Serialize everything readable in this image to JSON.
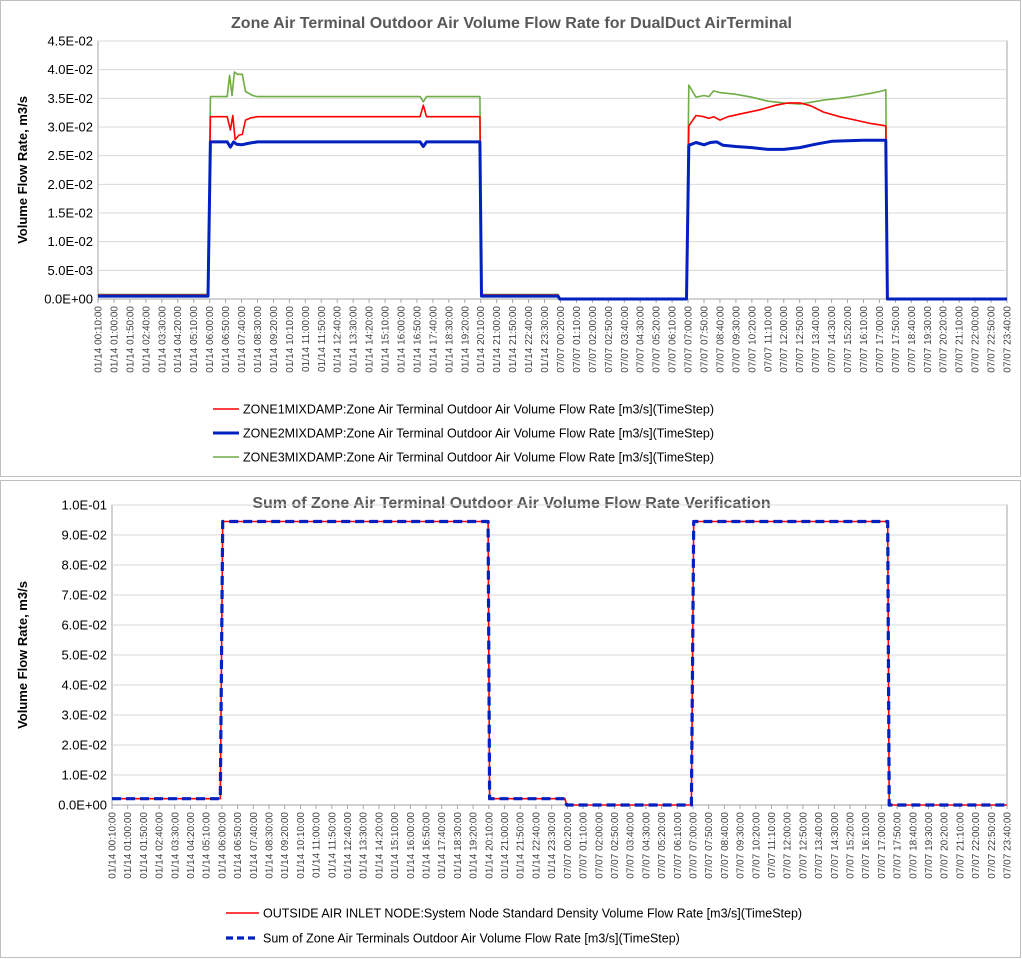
{
  "colors": {
    "zone1": "#ff0000",
    "zone2": "#0020c0",
    "zone3": "#70ad47",
    "outside": "#ff0000",
    "sum": "#0020c0"
  },
  "chart_data": [
    {
      "type": "line",
      "title": "Zone Air Terminal Outdoor Air Volume Flow Rate for DualDuct AirTerminal",
      "xlabel": "",
      "ylabel": "Volume Flow Rate, m3/s",
      "ylim": [
        0,
        0.045
      ],
      "ytick_labels": [
        "0.0E+00",
        "5.0E-03",
        "1.0E-02",
        "1.5E-02",
        "2.0E-02",
        "2.5E-02",
        "3.0E-02",
        "3.5E-02",
        "4.0E-02",
        "4.5E-02"
      ],
      "x_tick_labels": [
        "01/14 00:10:00",
        "01/14 01:00:00",
        "01/14 01:50:00",
        "01/14 02:40:00",
        "01/14 03:30:00",
        "01/14 04:20:00",
        "01/14 05:10:00",
        "01/14 06:00:00",
        "01/14 06:50:00",
        "01/14 07:40:00",
        "01/14 08:30:00",
        "01/14 09:20:00",
        "01/14 10:10:00",
        "01/14 11:00:00",
        "01/14 11:50:00",
        "01/14 12:40:00",
        "01/14 13:30:00",
        "01/14 14:20:00",
        "01/14 15:10:00",
        "01/14 16:00:00",
        "01/14 16:50:00",
        "01/14 17:40:00",
        "01/14 18:30:00",
        "01/14 19:20:00",
        "01/14 20:10:00",
        "01/14 21:00:00",
        "01/14 21:50:00",
        "01/14 22:40:00",
        "01/14 23:30:00",
        "07/07 00:20:00",
        "07/07 01:10:00",
        "07/07 02:00:00",
        "07/07 02:50:00",
        "07/07 03:40:00",
        "07/07 04:30:00",
        "07/07 05:20:00",
        "07/07 06:10:00",
        "07/07 07:00:00",
        "07/07 07:50:00",
        "07/07 08:40:00",
        "07/07 09:30:00",
        "07/07 10:20:00",
        "07/07 11:10:00",
        "07/07 12:00:00",
        "07/07 12:50:00",
        "07/07 13:40:00",
        "07/07 14:30:00",
        "07/07 15:20:00",
        "07/07 16:10:00",
        "07/07 17:00:00",
        "07/07 17:50:00",
        "07/07 18:40:00",
        "07/07 19:30:00",
        "07/07 20:20:00",
        "07/07 21:10:00",
        "07/07 22:00:00",
        "07/07 22:50:00",
        "07/07 23:40:00"
      ],
      "x_index_range": [
        0,
        57
      ],
      "series": [
        {
          "name": "ZONE1MIXDAMP:Zone Air Terminal Outdoor Air Volume Flow Rate [m3/s](TimeStep)",
          "color_key": "zone1",
          "points": [
            [
              0,
              0.0007
            ],
            [
              6.9,
              0.0007
            ],
            [
              7.05,
              0.0318
            ],
            [
              8.1,
              0.0318
            ],
            [
              8.3,
              0.0295
            ],
            [
              8.45,
              0.032
            ],
            [
              8.6,
              0.0278
            ],
            [
              8.85,
              0.0286
            ],
            [
              9.05,
              0.0287
            ],
            [
              9.25,
              0.0312
            ],
            [
              9.6,
              0.0316
            ],
            [
              10,
              0.0318
            ],
            [
              20.2,
              0.0318
            ],
            [
              20.4,
              0.0338
            ],
            [
              20.6,
              0.0318
            ],
            [
              23.95,
              0.0318
            ],
            [
              24.05,
              0.0007
            ],
            [
              28.85,
              0.0007
            ],
            [
              28.95,
              0.0
            ],
            [
              36.9,
              0.0
            ],
            [
              37.05,
              0.0302
            ],
            [
              37.5,
              0.032
            ],
            [
              38,
              0.0318
            ],
            [
              38.3,
              0.0315
            ],
            [
              38.6,
              0.0318
            ],
            [
              39.0,
              0.0312
            ],
            [
              39.5,
              0.0318
            ],
            [
              40.5,
              0.0324
            ],
            [
              41.5,
              0.033
            ],
            [
              42.5,
              0.0338
            ],
            [
              43.3,
              0.0342
            ],
            [
              44.0,
              0.0342
            ],
            [
              44.7,
              0.0337
            ],
            [
              45.5,
              0.0326
            ],
            [
              46.5,
              0.0318
            ],
            [
              47.5,
              0.0312
            ],
            [
              48.5,
              0.0306
            ],
            [
              49.2,
              0.0303
            ],
            [
              49.4,
              0.0302
            ],
            [
              49.5,
              0.0
            ],
            [
              57,
              0.0
            ]
          ]
        },
        {
          "name": "ZONE2MIXDAMP:Zone Air Terminal Outdoor Air Volume Flow Rate [m3/s](TimeStep)",
          "color_key": "zone2",
          "points": [
            [
              0,
              0.0005
            ],
            [
              6.9,
              0.0005
            ],
            [
              7.05,
              0.0274
            ],
            [
              8.1,
              0.0274
            ],
            [
              8.3,
              0.0265
            ],
            [
              8.5,
              0.0274
            ],
            [
              8.7,
              0.027
            ],
            [
              9.0,
              0.0269
            ],
            [
              9.5,
              0.0272
            ],
            [
              10,
              0.0274
            ],
            [
              20.2,
              0.0274
            ],
            [
              20.4,
              0.0266
            ],
            [
              20.6,
              0.0274
            ],
            [
              23.95,
              0.0274
            ],
            [
              24.05,
              0.0005
            ],
            [
              28.85,
              0.0005
            ],
            [
              28.95,
              0.0
            ],
            [
              36.9,
              0.0
            ],
            [
              37.05,
              0.0268
            ],
            [
              37.5,
              0.0273
            ],
            [
              38,
              0.0269
            ],
            [
              38.4,
              0.0273
            ],
            [
              38.8,
              0.0274
            ],
            [
              39.2,
              0.0268
            ],
            [
              40,
              0.0266
            ],
            [
              41,
              0.0264
            ],
            [
              42,
              0.0261
            ],
            [
              43,
              0.0261
            ],
            [
              44,
              0.0264
            ],
            [
              45,
              0.027
            ],
            [
              46,
              0.0275
            ],
            [
              47,
              0.0276
            ],
            [
              48,
              0.0277
            ],
            [
              49.4,
              0.0277
            ],
            [
              49.5,
              0.0
            ],
            [
              57,
              0.0
            ]
          ]
        },
        {
          "name": "ZONE3MIXDAMP:Zone Air Terminal Outdoor Air Volume Flow Rate [m3/s](TimeStep)",
          "color_key": "zone3",
          "points": [
            [
              0,
              0.0008
            ],
            [
              6.9,
              0.0008
            ],
            [
              7.05,
              0.0353
            ],
            [
              8.1,
              0.0353
            ],
            [
              8.25,
              0.039
            ],
            [
              8.4,
              0.0355
            ],
            [
              8.55,
              0.0396
            ],
            [
              8.75,
              0.0392
            ],
            [
              9.05,
              0.0392
            ],
            [
              9.25,
              0.0362
            ],
            [
              9.7,
              0.0355
            ],
            [
              10,
              0.0353
            ],
            [
              20.2,
              0.0353
            ],
            [
              20.4,
              0.0344
            ],
            [
              20.6,
              0.0353
            ],
            [
              23.95,
              0.0353
            ],
            [
              24.05,
              0.0008
            ],
            [
              28.85,
              0.0008
            ],
            [
              28.95,
              0.0
            ],
            [
              36.9,
              0.0
            ],
            [
              37.05,
              0.0373
            ],
            [
              37.5,
              0.0352
            ],
            [
              38,
              0.0355
            ],
            [
              38.3,
              0.0353
            ],
            [
              38.6,
              0.0363
            ],
            [
              39,
              0.036
            ],
            [
              40,
              0.0357
            ],
            [
              41,
              0.0352
            ],
            [
              42,
              0.0345
            ],
            [
              43,
              0.0342
            ],
            [
              44,
              0.034
            ],
            [
              44.7,
              0.0343
            ],
            [
              45.5,
              0.0347
            ],
            [
              46.5,
              0.035
            ],
            [
              47.5,
              0.0354
            ],
            [
              48.5,
              0.0359
            ],
            [
              49.2,
              0.0363
            ],
            [
              49.4,
              0.0365
            ],
            [
              49.5,
              0.0
            ],
            [
              57,
              0.0
            ]
          ]
        }
      ]
    },
    {
      "type": "line",
      "title": "Sum of Zone Air Terminal Outdoor Air Volume Flow Rate Verification",
      "xlabel": "",
      "ylabel": "Volume Flow Rate, m3/s",
      "ylim": [
        0,
        0.1
      ],
      "ytick_labels": [
        "0.0E+00",
        "1.0E-02",
        "2.0E-02",
        "3.0E-02",
        "4.0E-02",
        "5.0E-02",
        "6.0E-02",
        "7.0E-02",
        "8.0E-02",
        "9.0E-02",
        "1.0E-01"
      ],
      "x_tick_labels": [
        "01/14 00:10:00",
        "01/14 01:00:00",
        "01/14 01:50:00",
        "01/14 02:40:00",
        "01/14 03:30:00",
        "01/14 04:20:00",
        "01/14 05:10:00",
        "01/14 06:00:00",
        "01/14 06:50:00",
        "01/14 07:40:00",
        "01/14 08:30:00",
        "01/14 09:20:00",
        "01/14 10:10:00",
        "01/14 11:00:00",
        "01/14 11:50:00",
        "01/14 12:40:00",
        "01/14 13:30:00",
        "01/14 14:20:00",
        "01/14 15:10:00",
        "01/14 16:00:00",
        "01/14 16:50:00",
        "01/14 17:40:00",
        "01/14 18:30:00",
        "01/14 19:20:00",
        "01/14 20:10:00",
        "01/14 21:00:00",
        "01/14 21:50:00",
        "01/14 22:40:00",
        "01/14 23:30:00",
        "07/07 00:20:00",
        "07/07 01:10:00",
        "07/07 02:00:00",
        "07/07 02:50:00",
        "07/07 03:40:00",
        "07/07 04:30:00",
        "07/07 05:20:00",
        "07/07 06:10:00",
        "07/07 07:00:00",
        "07/07 07:50:00",
        "07/07 08:40:00",
        "07/07 09:30:00",
        "07/07 10:20:00",
        "07/07 11:10:00",
        "07/07 12:00:00",
        "07/07 12:50:00",
        "07/07 13:40:00",
        "07/07 14:30:00",
        "07/07 15:20:00",
        "07/07 16:10:00",
        "07/07 17:00:00",
        "07/07 17:50:00",
        "07/07 18:40:00",
        "07/07 19:30:00",
        "07/07 20:20:00",
        "07/07 21:10:00",
        "07/07 22:00:00",
        "07/07 22:50:00",
        "07/07 23:40:00"
      ],
      "x_index_range": [
        0,
        57
      ],
      "series": [
        {
          "name": "OUTSIDE AIR INLET NODE:System Node Standard Density Volume Flow Rate [m3/s](TimeStep)",
          "color_key": "outside",
          "dash": false,
          "points": [
            [
              0,
              0.0021
            ],
            [
              6.9,
              0.0021
            ],
            [
              7.05,
              0.0945
            ],
            [
              23.95,
              0.0945
            ],
            [
              24.05,
              0.0021
            ],
            [
              28.85,
              0.0021
            ],
            [
              28.95,
              0.0
            ],
            [
              36.9,
              0.0
            ],
            [
              37.05,
              0.0945
            ],
            [
              49.4,
              0.0945
            ],
            [
              49.5,
              0.0
            ],
            [
              57,
              0.0
            ]
          ]
        },
        {
          "name": "Sum of Zone Air Terminals Outdoor Air Volume Flow Rate [m3/s](TimeStep)",
          "color_key": "sum",
          "dash": true,
          "points": [
            [
              0,
              0.0021
            ],
            [
              6.9,
              0.0021
            ],
            [
              7.05,
              0.0945
            ],
            [
              23.95,
              0.0945
            ],
            [
              24.05,
              0.0021
            ],
            [
              28.85,
              0.0021
            ],
            [
              28.95,
              0.0
            ],
            [
              36.9,
              0.0
            ],
            [
              37.05,
              0.0945
            ],
            [
              49.4,
              0.0945
            ],
            [
              49.5,
              0.0
            ],
            [
              57,
              0.0
            ]
          ]
        }
      ]
    }
  ]
}
